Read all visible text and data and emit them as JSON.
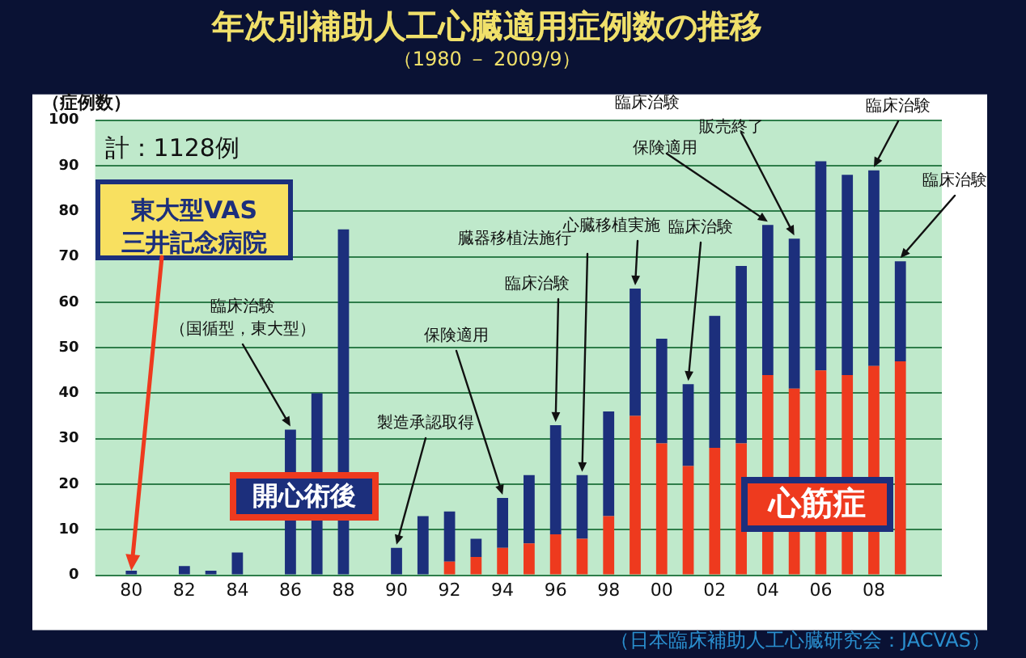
{
  "chart_data": {
    "type": "bar",
    "title": "年次別補助人工心臓適用症例数の推移",
    "subtitle": "（1980 － 2009/9）",
    "ylabel": "（症例数）",
    "x": [
      1980,
      1981,
      1982,
      1983,
      1984,
      1985,
      1986,
      1987,
      1988,
      1989,
      1990,
      1991,
      1992,
      1993,
      1994,
      1995,
      1996,
      1997,
      1998,
      1999,
      2000,
      2001,
      2002,
      2003,
      2004,
      2005,
      2006,
      2007,
      2008,
      2009
    ],
    "series": [
      {
        "name": "心筋症",
        "color": "#ee3a1e",
        "values": [
          0,
          0,
          0,
          0,
          0,
          0,
          0,
          0,
          0,
          0,
          0,
          0,
          3,
          4,
          6,
          7,
          9,
          8,
          13,
          35,
          29,
          24,
          28,
          29,
          44,
          41,
          45,
          44,
          46,
          47
        ]
      },
      {
        "name": "開心術後",
        "color": "#1c2f7c",
        "values": [
          1,
          0,
          2,
          1,
          5,
          null,
          32,
          40,
          76,
          null,
          6,
          13,
          11,
          4,
          11,
          15,
          24,
          14,
          23,
          28,
          23,
          18,
          29,
          39,
          33,
          33,
          46,
          44,
          43,
          22
        ]
      }
    ],
    "stacked": true,
    "xlim": [
      1979.7,
      2009.5
    ],
    "xticks": [
      {
        "value": 1980,
        "label": "80"
      },
      {
        "value": 1982,
        "label": "82"
      },
      {
        "value": 1984,
        "label": "84"
      },
      {
        "value": 1986,
        "label": "86"
      },
      {
        "value": 1988,
        "label": "88"
      },
      {
        "value": 1990,
        "label": "90"
      },
      {
        "value": 1992,
        "label": "92"
      },
      {
        "value": 1994,
        "label": "94"
      },
      {
        "value": 1996,
        "label": "96"
      },
      {
        "value": 1998,
        "label": "98"
      },
      {
        "value": 2000,
        "label": "00"
      },
      {
        "value": 2002,
        "label": "02"
      },
      {
        "value": 2004,
        "label": "04"
      },
      {
        "value": 2006,
        "label": "06"
      },
      {
        "value": 2008,
        "label": "08"
      }
    ],
    "ylim": [
      0,
      100
    ],
    "yticks": [
      0,
      10,
      20,
      30,
      40,
      50,
      60,
      70,
      80,
      90,
      100
    ],
    "grid": "y",
    "legend": false,
    "annotations": [
      "計：1128例",
      {
        "text": "東大型VAS三井記念病院",
        "x": 1980,
        "y": 1
      },
      {
        "text": "臨床治験（国循型，東大型）",
        "x": 1986,
        "y": 32
      },
      {
        "text": "製造承認取得",
        "x": 1990,
        "y": 6
      },
      {
        "text": "保険適用",
        "x": 1994,
        "y": 17
      },
      {
        "text": "臨床治験",
        "x": 1996,
        "y": 33
      },
      {
        "text": "臓器移植法施行",
        "x": 1997,
        "y": 22
      },
      {
        "text": "心臓移植実施",
        "x": 1999,
        "y": 63
      },
      {
        "text": "臨床治験",
        "x": 2001,
        "y": 42
      },
      {
        "text": "保険適用",
        "x": 2004,
        "y": 77
      },
      "臨床治験",
      {
        "text": "販売終了",
        "x": 2005,
        "y": 74
      },
      {
        "text": "臨床治験",
        "x": 2008,
        "y": 89
      },
      {
        "text": "臨床治験",
        "x": 2009,
        "y": 69
      },
      "（日本臨床補助人工心臓研究会：JACVAS）"
    ]
  }
}
